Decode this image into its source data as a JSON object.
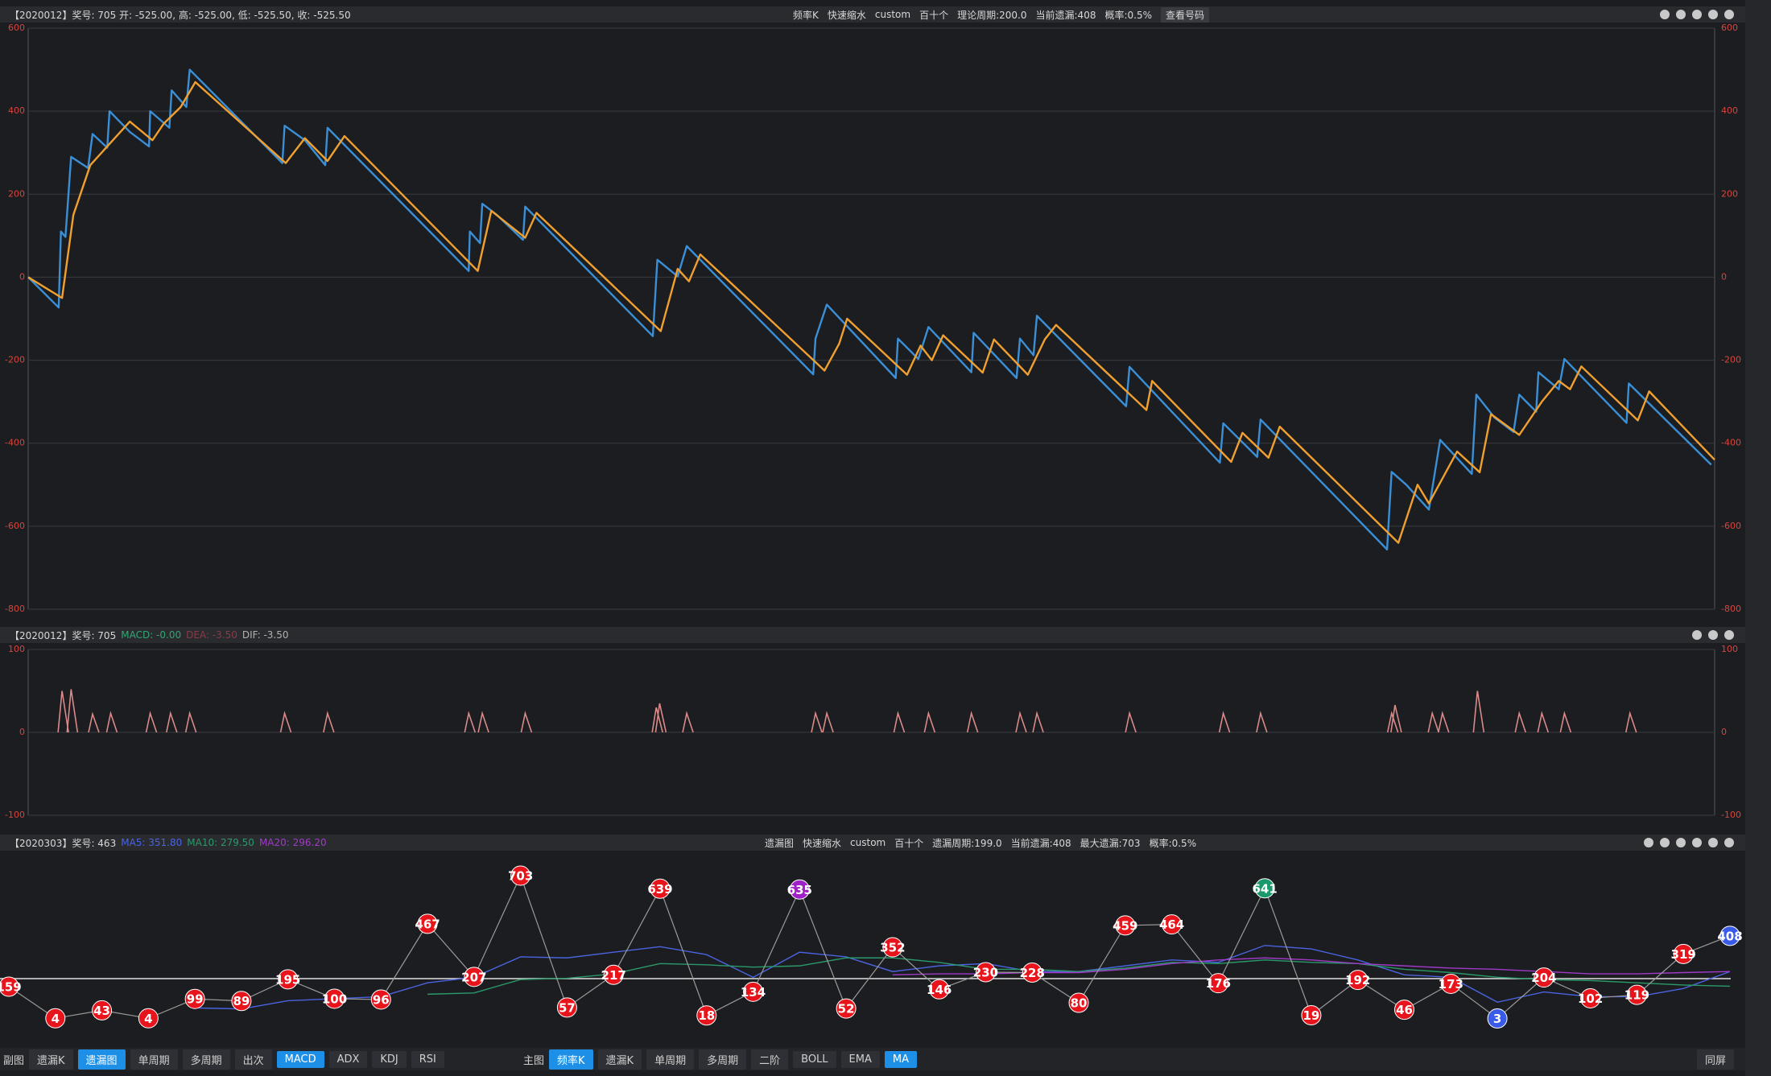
{
  "chart_data": [
    {
      "type": "line",
      "title": "【2020012】奖号: 705   开: -525.00, 高: -525.00, 低: -525.50, 收: -525.50",
      "info": [
        "频率K",
        "快速缩水",
        "custom",
        "百十个",
        "理论周期:200.0",
        "当前遗漏:408",
        "概率:0.5%"
      ],
      "action": "查看号码",
      "xlim": [
        0,
        1493
      ],
      "ylim": [
        -800,
        600
      ],
      "yticks": [
        -800,
        -600,
        -400,
        -200,
        0,
        200,
        400,
        600
      ],
      "grid": true,
      "tick_color": "#d9453d",
      "series": [
        {
          "color": "#3a8fd6",
          "x": [
            0,
            27,
            29,
            33,
            38,
            53,
            57,
            70,
            72,
            90,
            107,
            108,
            125,
            127,
            140,
            143,
            225,
            227,
            245,
            263,
            265,
            390,
            391,
            400,
            402,
            415,
            438,
            440,
            553,
            557,
            575,
            583,
            695,
            697,
            707,
            768,
            770,
            788,
            797,
            835,
            837,
            875,
            878,
            890,
            893,
            972,
            975,
            1055,
            1058,
            1088,
            1091,
            1203,
            1207,
            1220,
            1240,
            1250,
            1278,
            1282,
            1298,
            1315,
            1320,
            1335,
            1337,
            1355,
            1360,
            1415,
            1417,
            1490
          ],
          "values": [
            0,
            -73,
            110,
            97,
            290,
            263,
            345,
            312,
            400,
            350,
            315,
            400,
            360,
            450,
            410,
            500,
            275,
            365,
            330,
            270,
            360,
            15,
            110,
            82,
            177,
            150,
            90,
            170,
            -142,
            42,
            2,
            75,
            -234,
            -148,
            -66,
            -243,
            -148,
            -197,
            -120,
            -229,
            -134,
            -243,
            -148,
            -188,
            -93,
            -311,
            -216,
            -447,
            -352,
            -433,
            -343,
            -656,
            -469,
            -500,
            -560,
            -392,
            -474,
            -283,
            -338,
            -373,
            -283,
            -324,
            -229,
            -270,
            -197,
            -351,
            -256,
            -452
          ]
        },
        {
          "color": "#f0a030",
          "x": [
            0,
            30,
            40,
            55,
            75,
            90,
            110,
            120,
            135,
            148,
            228,
            245,
            265,
            280,
            398,
            410,
            440,
            450,
            560,
            575,
            585,
            595,
            705,
            718,
            725,
            778,
            790,
            800,
            810,
            845,
            855,
            885,
            900,
            910,
            990,
            995,
            1065,
            1075,
            1098,
            1108,
            1213,
            1230,
            1240,
            1265,
            1285,
            1295,
            1320,
            1340,
            1355,
            1365,
            1375,
            1425,
            1435,
            1493
          ],
          "values": [
            0,
            -50,
            150,
            270,
            330,
            375,
            330,
            370,
            410,
            470,
            275,
            335,
            280,
            340,
            15,
            160,
            95,
            155,
            -130,
            20,
            -10,
            55,
            -225,
            -160,
            -100,
            -235,
            -165,
            -200,
            -140,
            -230,
            -150,
            -235,
            -150,
            -115,
            -320,
            -250,
            -445,
            -375,
            -435,
            -360,
            -640,
            -500,
            -545,
            -420,
            -470,
            -330,
            -380,
            -300,
            -250,
            -270,
            -215,
            -345,
            -275,
            -440
          ]
        }
      ]
    },
    {
      "type": "impulse",
      "title": "【2020012】奖号: 705",
      "indicators": [
        {
          "text": "MACD: -0.00",
          "color": "#2fa874"
        },
        {
          "text": "DEA: -3.50",
          "color": "#8a3a48"
        },
        {
          "text": "DIF: -3.50",
          "color": "#b0b0b0"
        }
      ],
      "xlim": [
        0,
        1493
      ],
      "ylim": [
        -100,
        100
      ],
      "yticks": [
        -100,
        0,
        100
      ],
      "grid": true,
      "tick_color": "#d9453d",
      "series": [
        {
          "color": "#d98a8a",
          "x": [
            30,
            38,
            57,
            73,
            108,
            126,
            143,
            227,
            265,
            390,
            402,
            440,
            556,
            559,
            583,
            697,
            707,
            770,
            797,
            835,
            878,
            893,
            975,
            1058,
            1091,
            1207,
            1210,
            1243,
            1252,
            1283,
            1320,
            1340,
            1360,
            1418
          ],
          "values": [
            50,
            52,
            22,
            23,
            23,
            23,
            23,
            23,
            23,
            23,
            23,
            23,
            30,
            35,
            23,
            23,
            23,
            23,
            23,
            23,
            23,
            23,
            23,
            23,
            23,
            23,
            33,
            23,
            23,
            50,
            23,
            23,
            23,
            23
          ]
        }
      ]
    },
    {
      "type": "dot_line",
      "title": "【2020303】奖号: 463",
      "indicators": [
        {
          "text": "MA5: 351.80",
          "color": "#4a64e0"
        },
        {
          "text": "MA10: 279.50",
          "color": "#2a9a6a"
        },
        {
          "text": "MA20: 296.20",
          "color": "#a03ac8"
        }
      ],
      "info": [
        "遗漏图",
        "快速缩水",
        "custom",
        "百十个",
        "遗漏周期:199.0",
        "当前遗漏:408",
        "最大遗漏:703",
        "概率:0.5%"
      ],
      "ylim": [
        -125,
        790
      ],
      "line_color": "#9a9a9a",
      "values": [
        159,
        4,
        43,
        4,
        99,
        89,
        195,
        100,
        96,
        467,
        207,
        703,
        57,
        217,
        639,
        18,
        134,
        635,
        52,
        352,
        146,
        230,
        228,
        80,
        459,
        464,
        176,
        641,
        19,
        192,
        46,
        173,
        3,
        204,
        102,
        119,
        319,
        408
      ],
      "point_colors": [
        "#e8141c",
        "#e8141c",
        "#e8141c",
        "#e8141c",
        "#e8141c",
        "#e8141c",
        "#e8141c",
        "#e8141c",
        "#e8141c",
        "#e8141c",
        "#e8141c",
        "#e8141c",
        "#e8141c",
        "#e8141c",
        "#e8141c",
        "#e8141c",
        "#e8141c",
        "#a020c8",
        "#e8141c",
        "#e8141c",
        "#e8141c",
        "#e8141c",
        "#e8141c",
        "#e8141c",
        "#e8141c",
        "#e8141c",
        "#e8141c",
        "#1a9a6a",
        "#e8141c",
        "#e8141c",
        "#e8141c",
        "#e8141c",
        "#3a5ae8",
        "#e8141c",
        "#e8141c",
        "#e8141c",
        "#e8141c",
        "#3a5ae8"
      ],
      "series": [
        {
          "color": "#4a64e0",
          "values": [
            null,
            null,
            null,
            null,
            55,
            50,
            90,
            100,
            110,
            178,
            205,
            305,
            300,
            328,
            355,
            316,
            205,
            328,
            305,
            233,
            261,
            272,
            233,
            233,
            261,
            290,
            278,
            361,
            344,
            290,
            217,
            205,
            83,
            133,
            110,
            110,
            150,
            233
          ]
        },
        {
          "color": "#2a9a6a",
          "values": [
            null,
            null,
            null,
            null,
            null,
            null,
            null,
            null,
            null,
            122,
            128,
            194,
            200,
            222,
            272,
            266,
            255,
            261,
            300,
            300,
            278,
            244,
            244,
            233,
            250,
            278,
            272,
            290,
            278,
            272,
            244,
            228,
            205,
            194,
            189,
            178,
            167,
            161
          ]
        },
        {
          "color": "#a03ac8",
          "values": [
            null,
            null,
            null,
            null,
            null,
            null,
            null,
            null,
            null,
            null,
            null,
            null,
            null,
            null,
            null,
            null,
            null,
            null,
            null,
            217,
            222,
            222,
            228,
            228,
            244,
            272,
            290,
            300,
            290,
            272,
            261,
            250,
            244,
            233,
            222,
            222,
            228,
            233
          ]
        }
      ]
    }
  ],
  "toolbar": {
    "left_label": "副图",
    "left_buttons": [
      {
        "label": "遗漏K",
        "active": false
      },
      {
        "label": "遗漏图",
        "active": true
      },
      {
        "label": "单周期",
        "active": false
      },
      {
        "label": "多周期",
        "active": false
      },
      {
        "label": "出次",
        "active": false
      },
      {
        "label": "MACD",
        "active": true
      },
      {
        "label": "ADX",
        "active": false
      },
      {
        "label": "KDJ",
        "active": false
      },
      {
        "label": "RSI",
        "active": false
      }
    ],
    "center_label": "主图",
    "center_buttons": [
      {
        "label": "频率K",
        "active": true
      },
      {
        "label": "遗漏K",
        "active": false
      },
      {
        "label": "单周期",
        "active": false
      },
      {
        "label": "多周期",
        "active": false
      },
      {
        "label": "二阶",
        "active": false
      },
      {
        "label": "BOLL",
        "active": false
      },
      {
        "label": "EMA",
        "active": false
      },
      {
        "label": "MA",
        "active": true
      }
    ],
    "right_button": "同屏"
  }
}
